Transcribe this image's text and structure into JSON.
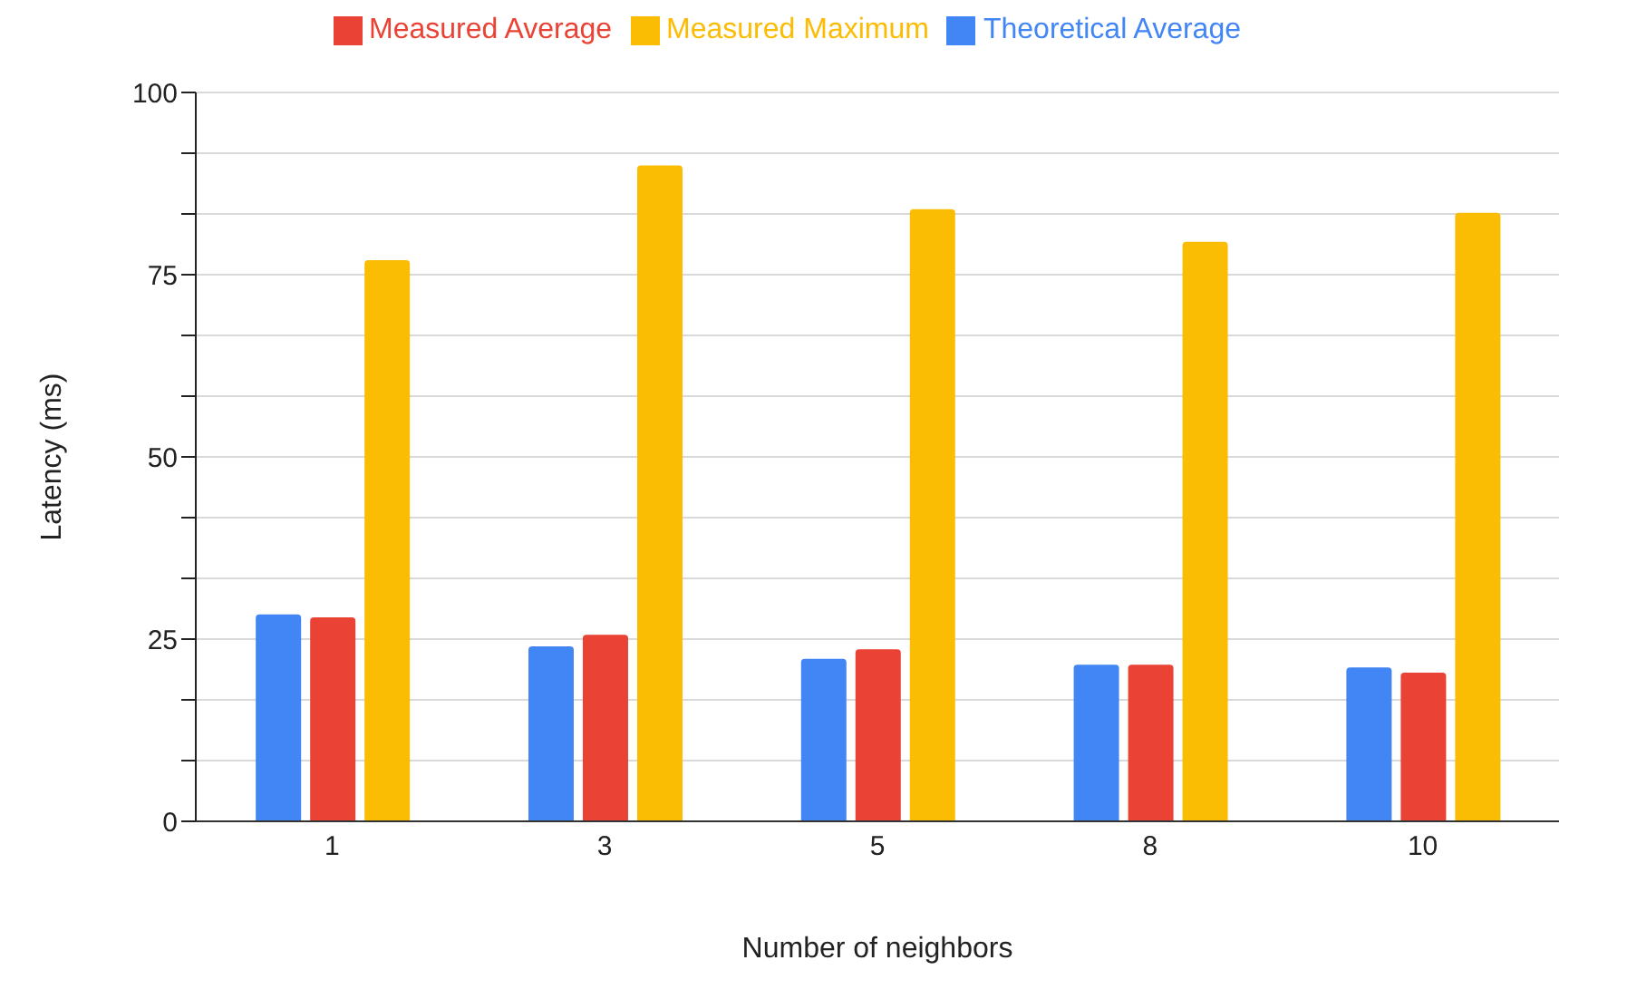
{
  "chart_data": {
    "type": "bar",
    "xlabel": "Number of neighbors",
    "ylabel": "Latency (ms)",
    "categories": [
      "1",
      "3",
      "5",
      "8",
      "10"
    ],
    "series": [
      {
        "name": "Theoretical Average",
        "color": "#4285f4",
        "values": [
          28.4,
          24.0,
          22.3,
          21.5,
          21.1
        ]
      },
      {
        "name": "Measured Average",
        "color": "#ea4335",
        "values": [
          28.0,
          25.6,
          23.6,
          21.5,
          20.4
        ]
      },
      {
        "name": "Measured Maximum",
        "color": "#fbbc04",
        "values": [
          77,
          90,
          84,
          79.5,
          83.5
        ]
      }
    ],
    "ylim": [
      0,
      100
    ],
    "yticks": [
      0,
      {
        "value": 8.33,
        "label": null
      },
      {
        "value": 16.67,
        "label": null
      },
      25,
      {
        "value": 33.33,
        "label": null
      },
      {
        "value": 41.67,
        "label": null
      },
      50,
      {
        "value": 58.33,
        "label": null
      },
      {
        "value": 66.67,
        "label": null
      },
      75,
      {
        "value": 83.33,
        "label": null
      },
      {
        "value": 91.67,
        "label": null
      },
      100
    ],
    "grid": "y",
    "legend": "top"
  }
}
